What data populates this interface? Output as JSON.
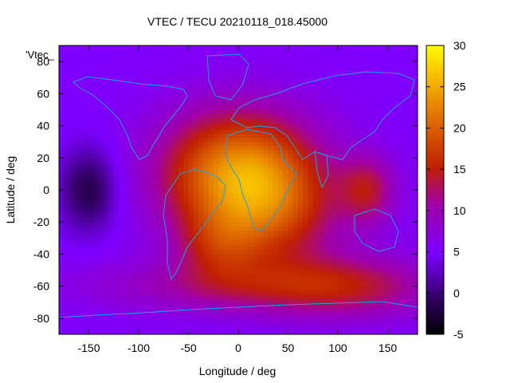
{
  "chart_data": {
    "type": "heatmap",
    "title": "VTEC / TECU 20210118_018.45000",
    "xlabel": "Longitude / deg",
    "ylabel": "Latitude / deg",
    "key_title": "'Vtec_",
    "xlim": [
      -180,
      180
    ],
    "ylim": [
      -90,
      90
    ],
    "x_ticks": [
      -150,
      -100,
      -50,
      0,
      50,
      100,
      150
    ],
    "y_ticks": [
      -80,
      -60,
      -40,
      -20,
      0,
      20,
      40,
      60,
      80
    ],
    "colorbar": {
      "min": -5,
      "max": 30,
      "ticks": [
        -5,
        0,
        5,
        10,
        15,
        20,
        25,
        30
      ],
      "palette": "black-purple-red-orange-yellow"
    },
    "grid": {
      "lon_step": 5,
      "lat_step": 2.5
    },
    "field_model": {
      "background": 5,
      "blobs": [
        {
          "lon": 0,
          "lat": 10,
          "sdlon": 55,
          "sdlat": 28,
          "amp": 18
        },
        {
          "lon": 40,
          "lat": -15,
          "sdlon": 45,
          "sdlat": 25,
          "amp": 7
        },
        {
          "lon": -20,
          "lat": -35,
          "sdlon": 30,
          "sdlat": 15,
          "amp": 6
        },
        {
          "lon": 10,
          "lat": -60,
          "sdlon": 110,
          "sdlat": 12,
          "amp": 6
        },
        {
          "lon": 130,
          "lat": 0,
          "sdlon": 20,
          "sdlat": 15,
          "amp": 8
        },
        {
          "lon": 110,
          "lat": -60,
          "sdlon": 60,
          "sdlat": 15,
          "amp": 6
        },
        {
          "lon": -150,
          "lat": 0,
          "sdlon": 20,
          "sdlat": 18,
          "amp": -7
        }
      ]
    },
    "coastline_color": "#22a0e0"
  }
}
